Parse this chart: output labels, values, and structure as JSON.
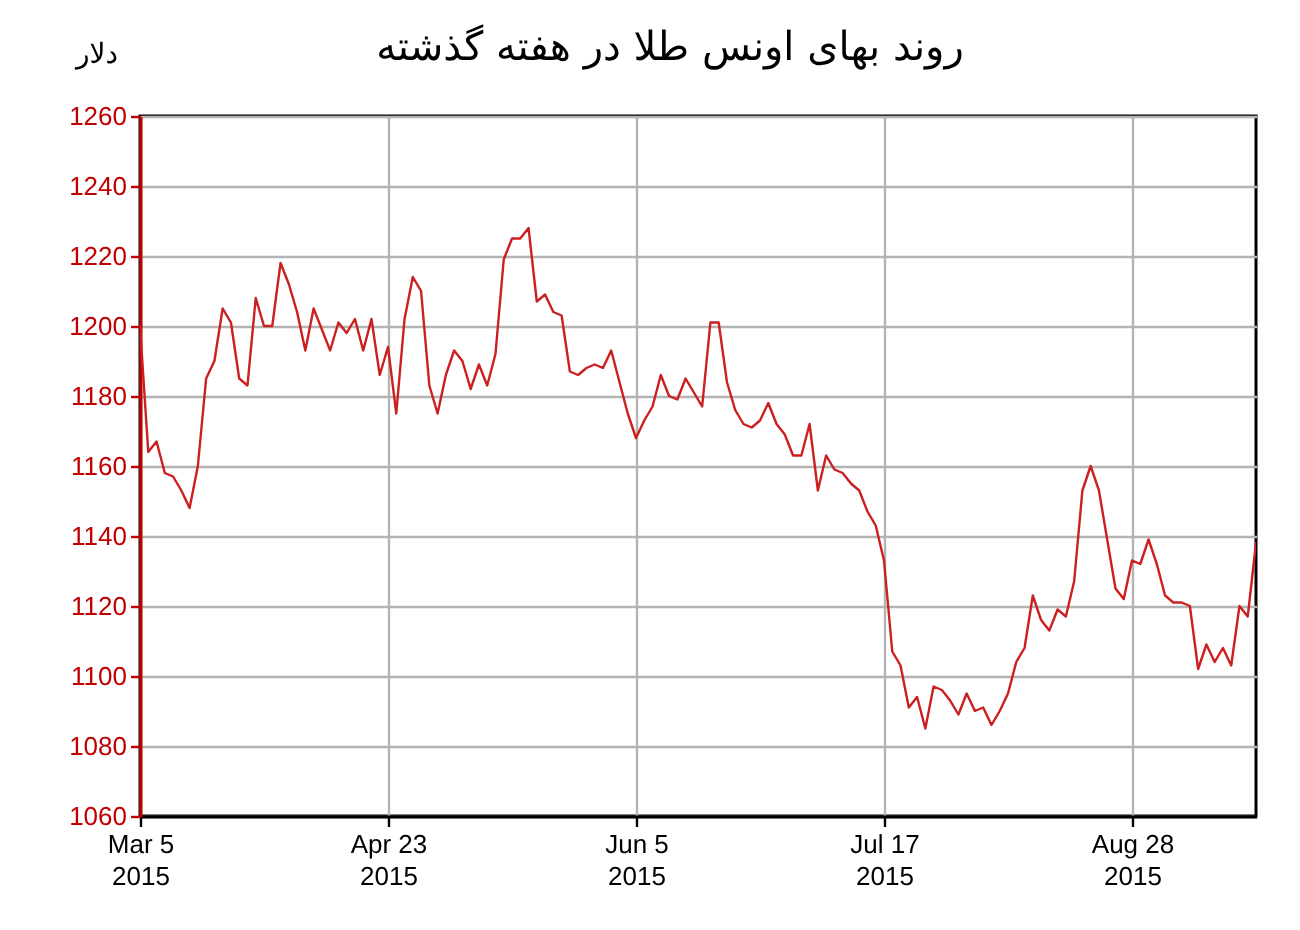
{
  "chart_data": {
    "type": "line",
    "title": "روند بهای اونس طلا در هفته گذشته",
    "ylabel": "دلار",
    "categories": [
      "Mar 5\n2015",
      null,
      null,
      null,
      null,
      null,
      null,
      null,
      null,
      null,
      null,
      null,
      null,
      null,
      null,
      null,
      null,
      null,
      null,
      null,
      null,
      null,
      null,
      null,
      null,
      null,
      null,
      null,
      null,
      null,
      "Apr 23\n2015",
      null,
      null,
      null,
      null,
      null,
      null,
      null,
      null,
      null,
      null,
      null,
      null,
      null,
      null,
      null,
      null,
      null,
      null,
      null,
      null,
      null,
      null,
      null,
      null,
      null,
      null,
      null,
      null,
      null,
      "Jun 5\n2015",
      null,
      null,
      null,
      null,
      null,
      null,
      null,
      null,
      null,
      null,
      null,
      null,
      null,
      null,
      null,
      null,
      null,
      null,
      null,
      null,
      null,
      null,
      null,
      null,
      null,
      null,
      null,
      null,
      null,
      "Jul 17\n2015",
      null,
      null,
      null,
      null,
      null,
      null,
      null,
      null,
      null,
      null,
      null,
      null,
      null,
      null,
      null,
      null,
      null,
      null,
      null,
      null,
      null,
      null,
      null,
      null,
      null,
      null,
      null,
      null,
      null,
      "Aug 28\n2015",
      null,
      null,
      null,
      null,
      null,
      null,
      null,
      null,
      null,
      null,
      null,
      null,
      null,
      null,
      null
    ],
    "series": [
      {
        "color": "#cc1f1f",
        "values": [
          1200,
          1164,
          1167,
          1158,
          1157,
          1153,
          1148,
          1160,
          1185,
          1190,
          1205,
          1201,
          1185,
          1183,
          1208,
          1200,
          1200,
          1218,
          1212,
          1204,
          1193,
          1205,
          1199,
          1193,
          1201,
          1198,
          1202,
          1193,
          1202,
          1186,
          1194,
          1175,
          1202,
          1214,
          1210,
          1183,
          1175,
          1186,
          1193,
          1190,
          1182,
          1189,
          1183,
          1192,
          1219,
          1225,
          1225,
          1228,
          1207,
          1209,
          1204,
          1203,
          1187,
          1186,
          1188,
          1189,
          1188,
          1193,
          1184,
          1175,
          1168,
          1173,
          1177,
          1186,
          1180,
          1179,
          1185,
          1181,
          1177,
          1201,
          1201,
          1184,
          1176,
          1172,
          1171,
          1173,
          1178,
          1172,
          1169,
          1163,
          1163,
          1172,
          1153,
          1163,
          1159,
          1158,
          1155,
          1153,
          1147,
          1143,
          1133,
          1107,
          1103,
          1091,
          1094,
          1085,
          1097,
          1096,
          1093,
          1089,
          1095,
          1090,
          1091,
          1086,
          1090,
          1095,
          1104,
          1108,
          1123,
          1116,
          1113,
          1119,
          1117,
          1127,
          1153,
          1160,
          1153,
          1139,
          1125,
          1122,
          1133,
          1132,
          1139,
          1132,
          1123,
          1121,
          1121,
          1120,
          1102,
          1109,
          1104,
          1108,
          1103,
          1120,
          1117,
          1138
        ]
      }
    ],
    "ylim": [
      1060,
      1260
    ],
    "yticks": [
      1060,
      1080,
      1100,
      1120,
      1140,
      1160,
      1180,
      1200,
      1220,
      1240,
      1260
    ],
    "grid": true
  }
}
